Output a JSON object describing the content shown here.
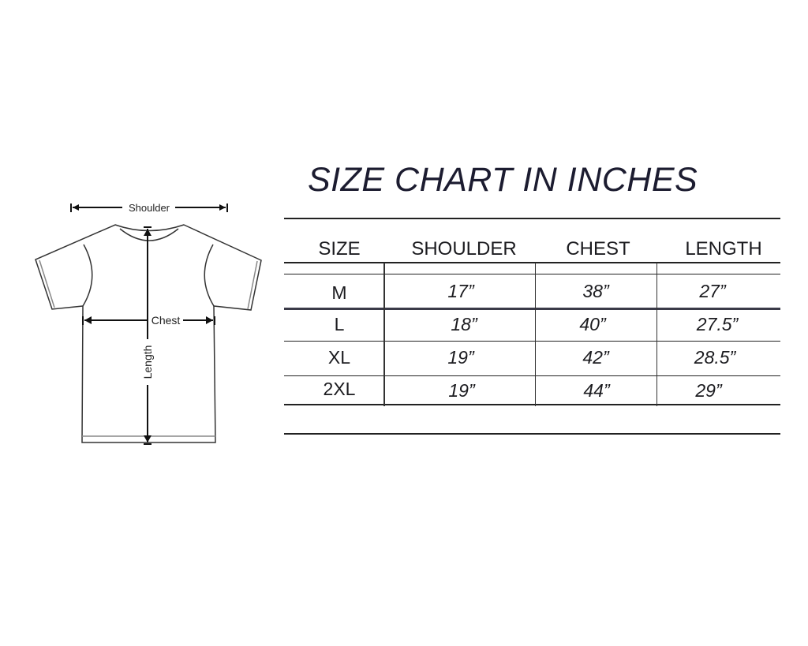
{
  "diagram": {
    "labels": {
      "shoulder": "Shoulder",
      "chest": "Chest",
      "length": "Length"
    }
  },
  "size_chart": {
    "title": "SIZE CHART IN INCHES",
    "columns": [
      "SIZE",
      "SHOULDER",
      "CHEST",
      "LENGTH"
    ],
    "rows": [
      {
        "size": "M",
        "shoulder": "17”",
        "chest": "38”",
        "length": "27”"
      },
      {
        "size": "L",
        "shoulder": "18”",
        "chest": "40”",
        "length": "27.5”"
      },
      {
        "size": "XL",
        "shoulder": "19”",
        "chest": "42”",
        "length": "28.5”"
      },
      {
        "size": "2XL",
        "shoulder": "19”",
        "chest": "44”",
        "length": "29”"
      }
    ]
  }
}
